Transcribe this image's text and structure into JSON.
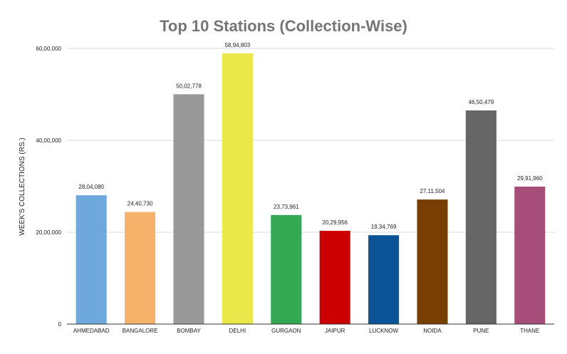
{
  "chart_data": {
    "type": "bar",
    "title": "Top 10 Stations (Collection-Wise)",
    "xlabel": "",
    "ylabel": "WEEK'S COLLECTIONS (RS.)",
    "ylim": [
      0,
      6000000
    ],
    "grid": true,
    "legend": "none",
    "y_ticks": [
      {
        "value": 0,
        "label": "0"
      },
      {
        "value": 2000000,
        "label": "20,00,000"
      },
      {
        "value": 4000000,
        "label": "40,00,000"
      },
      {
        "value": 6000000,
        "label": "60,00,000"
      }
    ],
    "categories": [
      "AHMEDABAD",
      "BANGALORE",
      "BOMBAY",
      "DELHI",
      "GURGAON",
      "JAIPUR",
      "LUCKNOW",
      "NOIDA",
      "PUNE",
      "THANE"
    ],
    "values": [
      2804080,
      2440730,
      5002778,
      5894803,
      2373961,
      2029956,
      1934769,
      2711504,
      4650479,
      2991960
    ],
    "value_labels": [
      "28,04,080",
      "24,40,730",
      "50,02,778",
      "58,94,803",
      "23,73,961",
      "20,29,956",
      "19,34,769",
      "27,11,504",
      "46,50,479",
      "29,91,960"
    ],
    "colors": [
      "#6fa8dc",
      "#f6b26b",
      "#999999",
      "#ebe84b",
      "#34a853",
      "#cc0000",
      "#0b5394",
      "#783f04",
      "#666666",
      "#a64d79"
    ],
    "title_color": "#757575",
    "grid_color": "#d9d9d9",
    "axis_color": "#333333"
  }
}
